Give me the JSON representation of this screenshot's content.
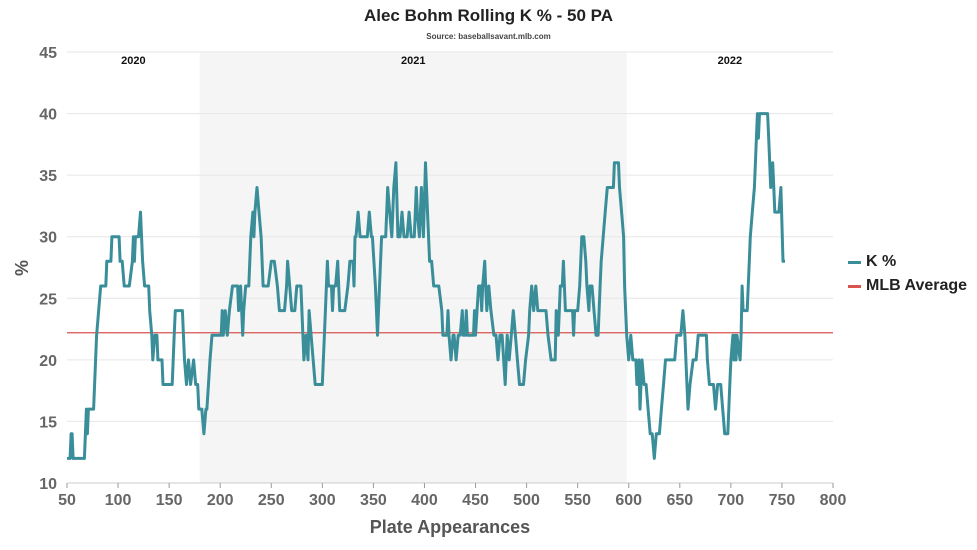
{
  "chart_data": {
    "type": "line",
    "title": "Alec Bohm Rolling K % - 50 PA",
    "subtitle": "Source: baseballsavant.mlb.com",
    "xlabel": "Plate Appearances",
    "ylabel": "%",
    "xlim": [
      50,
      800
    ],
    "ylim": [
      10,
      45
    ],
    "x_ticks": [
      "50",
      "100",
      "150",
      "200",
      "250",
      "300",
      "350",
      "400",
      "450",
      "500",
      "550",
      "600",
      "650",
      "700",
      "750",
      "800"
    ],
    "y_ticks": [
      "10",
      "15",
      "20",
      "25",
      "30",
      "35",
      "40",
      "45"
    ],
    "grid": "horizontal",
    "legend_position": "right",
    "seasons": [
      {
        "label": "2020",
        "x_start": 50,
        "x_end": 180,
        "shaded": false
      },
      {
        "label": "2021",
        "x_start": 180,
        "x_end": 598,
        "shaded": true
      },
      {
        "label": "2022",
        "x_start": 598,
        "x_end": 800,
        "shaded": false
      }
    ],
    "reference_line": {
      "name": "MLB Average",
      "y": 22.2,
      "color": "#d9534f"
    },
    "series": [
      {
        "name": "K %",
        "color": "#3a8e99",
        "points": [
          [
            50,
            12
          ],
          [
            53,
            12
          ],
          [
            54,
            14
          ],
          [
            55,
            14
          ],
          [
            56,
            12
          ],
          [
            67,
            12
          ],
          [
            68,
            14
          ],
          [
            69,
            16
          ],
          [
            70,
            14
          ],
          [
            71,
            16
          ],
          [
            76,
            16
          ],
          [
            79,
            22
          ],
          [
            83,
            26
          ],
          [
            88,
            26
          ],
          [
            89,
            28
          ],
          [
            93,
            28
          ],
          [
            94,
            30
          ],
          [
            101,
            30
          ],
          [
            102,
            28
          ],
          [
            104,
            28
          ],
          [
            106,
            26
          ],
          [
            111,
            26
          ],
          [
            114,
            28
          ],
          [
            115,
            30
          ],
          [
            116,
            28
          ],
          [
            117,
            30
          ],
          [
            120,
            30
          ],
          [
            122,
            32
          ],
          [
            124,
            28
          ],
          [
            126,
            26
          ],
          [
            130,
            26
          ],
          [
            131,
            24
          ],
          [
            133,
            22
          ],
          [
            134,
            20
          ],
          [
            136,
            22
          ],
          [
            138,
            22
          ],
          [
            139,
            20
          ],
          [
            143,
            20
          ],
          [
            144,
            18
          ],
          [
            153,
            18
          ],
          [
            155,
            22
          ],
          [
            156,
            24
          ],
          [
            163,
            24
          ],
          [
            165,
            20
          ],
          [
            167,
            18
          ],
          [
            169,
            20
          ],
          [
            171,
            18
          ],
          [
            174,
            20
          ],
          [
            176,
            18
          ],
          [
            178,
            18
          ],
          [
            179,
            16
          ],
          [
            182,
            16
          ],
          [
            184,
            14
          ],
          [
            186,
            16
          ],
          [
            187,
            16
          ],
          [
            190,
            20
          ],
          [
            192,
            22
          ],
          [
            201,
            22
          ],
          [
            202,
            24
          ],
          [
            203,
            22
          ],
          [
            205,
            24
          ],
          [
            207,
            22
          ],
          [
            209,
            24
          ],
          [
            212,
            26
          ],
          [
            217,
            26
          ],
          [
            218,
            24
          ],
          [
            220,
            26
          ],
          [
            222,
            22
          ],
          [
            223,
            24
          ],
          [
            225,
            26
          ],
          [
            228,
            26
          ],
          [
            230,
            30
          ],
          [
            232,
            32
          ],
          [
            233,
            30
          ],
          [
            234,
            32
          ],
          [
            236,
            34
          ],
          [
            238,
            32
          ],
          [
            240,
            30
          ],
          [
            242,
            26
          ],
          [
            247,
            26
          ],
          [
            250,
            28
          ],
          [
            253,
            28
          ],
          [
            256,
            26
          ],
          [
            258,
            24
          ],
          [
            263,
            24
          ],
          [
            265,
            26
          ],
          [
            266,
            28
          ],
          [
            268,
            26
          ],
          [
            270,
            24
          ],
          [
            273,
            24
          ],
          [
            275,
            26
          ],
          [
            279,
            26
          ],
          [
            280,
            24
          ],
          [
            282,
            20
          ],
          [
            284,
            22
          ],
          [
            286,
            20
          ],
          [
            287,
            24
          ],
          [
            289,
            22
          ],
          [
            293,
            18
          ],
          [
            300,
            18
          ],
          [
            302,
            22
          ],
          [
            304,
            26
          ],
          [
            305,
            28
          ],
          [
            306,
            26
          ],
          [
            309,
            26
          ],
          [
            310,
            24
          ],
          [
            311,
            26
          ],
          [
            313,
            26
          ],
          [
            315,
            28
          ],
          [
            316,
            26
          ],
          [
            317,
            24
          ],
          [
            322,
            24
          ],
          [
            325,
            26
          ],
          [
            327,
            28
          ],
          [
            330,
            28
          ],
          [
            331,
            26
          ],
          [
            332,
            30
          ],
          [
            333,
            30
          ],
          [
            335,
            32
          ],
          [
            337,
            30
          ],
          [
            340,
            30
          ],
          [
            342,
            30
          ],
          [
            344,
            30
          ],
          [
            346,
            32
          ],
          [
            348,
            30
          ],
          [
            349,
            30
          ],
          [
            352,
            26
          ],
          [
            354,
            22
          ],
          [
            355,
            24
          ],
          [
            358,
            30
          ],
          [
            362,
            30
          ],
          [
            364,
            34
          ],
          [
            366,
            32
          ],
          [
            368,
            30
          ],
          [
            370,
            34
          ],
          [
            372,
            36
          ],
          [
            374,
            30
          ],
          [
            376,
            30
          ],
          [
            378,
            32
          ],
          [
            380,
            30
          ],
          [
            383,
            30
          ],
          [
            385,
            32
          ],
          [
            387,
            30
          ],
          [
            390,
            30
          ],
          [
            392,
            34
          ],
          [
            393,
            32
          ],
          [
            395,
            30
          ],
          [
            397,
            34
          ],
          [
            399,
            30
          ],
          [
            401,
            36
          ],
          [
            403,
            32
          ],
          [
            405,
            28
          ],
          [
            407,
            28
          ],
          [
            409,
            26
          ],
          [
            414,
            26
          ],
          [
            417,
            24
          ],
          [
            418,
            22
          ],
          [
            422,
            22
          ],
          [
            423,
            24
          ],
          [
            424,
            22
          ],
          [
            426,
            20
          ],
          [
            428,
            22
          ],
          [
            429,
            22
          ],
          [
            431,
            20
          ],
          [
            433,
            22
          ],
          [
            435,
            22
          ],
          [
            437,
            24
          ],
          [
            438,
            22
          ],
          [
            440,
            22
          ],
          [
            441,
            24
          ],
          [
            442,
            22
          ],
          [
            448,
            22
          ],
          [
            449,
            24
          ],
          [
            450,
            22
          ],
          [
            453,
            26
          ],
          [
            455,
            26
          ],
          [
            456,
            24
          ],
          [
            457,
            26
          ],
          [
            459,
            28
          ],
          [
            460,
            26
          ],
          [
            461,
            24
          ],
          [
            463,
            26
          ],
          [
            465,
            24
          ],
          [
            468,
            22
          ],
          [
            470,
            22
          ],
          [
            472,
            20
          ],
          [
            474,
            22
          ],
          [
            476,
            22
          ],
          [
            479,
            18
          ],
          [
            481,
            22
          ],
          [
            483,
            20
          ],
          [
            485,
            22
          ],
          [
            487,
            24
          ],
          [
            489,
            22
          ],
          [
            491,
            20
          ],
          [
            493,
            18
          ],
          [
            497,
            18
          ],
          [
            499,
            20
          ],
          [
            502,
            22
          ],
          [
            503,
            24
          ],
          [
            505,
            26
          ],
          [
            507,
            24
          ],
          [
            509,
            26
          ],
          [
            511,
            24
          ],
          [
            519,
            24
          ],
          [
            521,
            22
          ],
          [
            524,
            20
          ],
          [
            528,
            20
          ],
          [
            529,
            24
          ],
          [
            531,
            22
          ],
          [
            533,
            26
          ],
          [
            535,
            26
          ],
          [
            536,
            28
          ],
          [
            537,
            26
          ],
          [
            538,
            24
          ],
          [
            545,
            24
          ],
          [
            546,
            22
          ],
          [
            547,
            24
          ],
          [
            550,
            24
          ],
          [
            552,
            26
          ],
          [
            554,
            30
          ],
          [
            556,
            30
          ],
          [
            558,
            28
          ],
          [
            559,
            26
          ],
          [
            561,
            24
          ],
          [
            562,
            26
          ],
          [
            564,
            26
          ],
          [
            566,
            24
          ],
          [
            568,
            22
          ],
          [
            570,
            22
          ],
          [
            572,
            26
          ],
          [
            573,
            28
          ],
          [
            575,
            30
          ],
          [
            577,
            32
          ],
          [
            579,
            34
          ],
          [
            585,
            34
          ],
          [
            586,
            36
          ],
          [
            590,
            36
          ],
          [
            591,
            34
          ],
          [
            593,
            32
          ],
          [
            595,
            30
          ],
          [
            596,
            26
          ],
          [
            598,
            22
          ],
          [
            600,
            20
          ],
          [
            602,
            22
          ],
          [
            604,
            20
          ],
          [
            607,
            20
          ],
          [
            608,
            18
          ],
          [
            610,
            20
          ],
          [
            611,
            16
          ],
          [
            613,
            20
          ],
          [
            615,
            18
          ],
          [
            617,
            18
          ],
          [
            619,
            16
          ],
          [
            621,
            14
          ],
          [
            623,
            14
          ],
          [
            625,
            12
          ],
          [
            627,
            14
          ],
          [
            630,
            14
          ],
          [
            632,
            16
          ],
          [
            634,
            18
          ],
          [
            636,
            20
          ],
          [
            645,
            20
          ],
          [
            647,
            22
          ],
          [
            651,
            22
          ],
          [
            653,
            24
          ],
          [
            655,
            22
          ],
          [
            656,
            20
          ],
          [
            658,
            16
          ],
          [
            660,
            18
          ],
          [
            663,
            20
          ],
          [
            666,
            20
          ],
          [
            668,
            22
          ],
          [
            676,
            22
          ],
          [
            677,
            20
          ],
          [
            679,
            18
          ],
          [
            683,
            18
          ],
          [
            685,
            16
          ],
          [
            687,
            18
          ],
          [
            690,
            18
          ],
          [
            692,
            16
          ],
          [
            694,
            14
          ],
          [
            697,
            14
          ],
          [
            699,
            18
          ],
          [
            700,
            20
          ],
          [
            702,
            22
          ],
          [
            703,
            20
          ],
          [
            704,
            22
          ],
          [
            705,
            20
          ],
          [
            706,
            22
          ],
          [
            709,
            20
          ],
          [
            710,
            22
          ],
          [
            711,
            26
          ],
          [
            712,
            24
          ],
          [
            716,
            24
          ],
          [
            718,
            28
          ],
          [
            719,
            30
          ],
          [
            721,
            32
          ],
          [
            723,
            34
          ],
          [
            726,
            40
          ],
          [
            727,
            38
          ],
          [
            728,
            40
          ],
          [
            736,
            40
          ],
          [
            737,
            38
          ],
          [
            739,
            34
          ],
          [
            741,
            36
          ],
          [
            742,
            34
          ],
          [
            743,
            32
          ],
          [
            747,
            32
          ],
          [
            749,
            34
          ],
          [
            751,
            28
          ],
          [
            753,
            28
          ]
        ]
      }
    ]
  }
}
